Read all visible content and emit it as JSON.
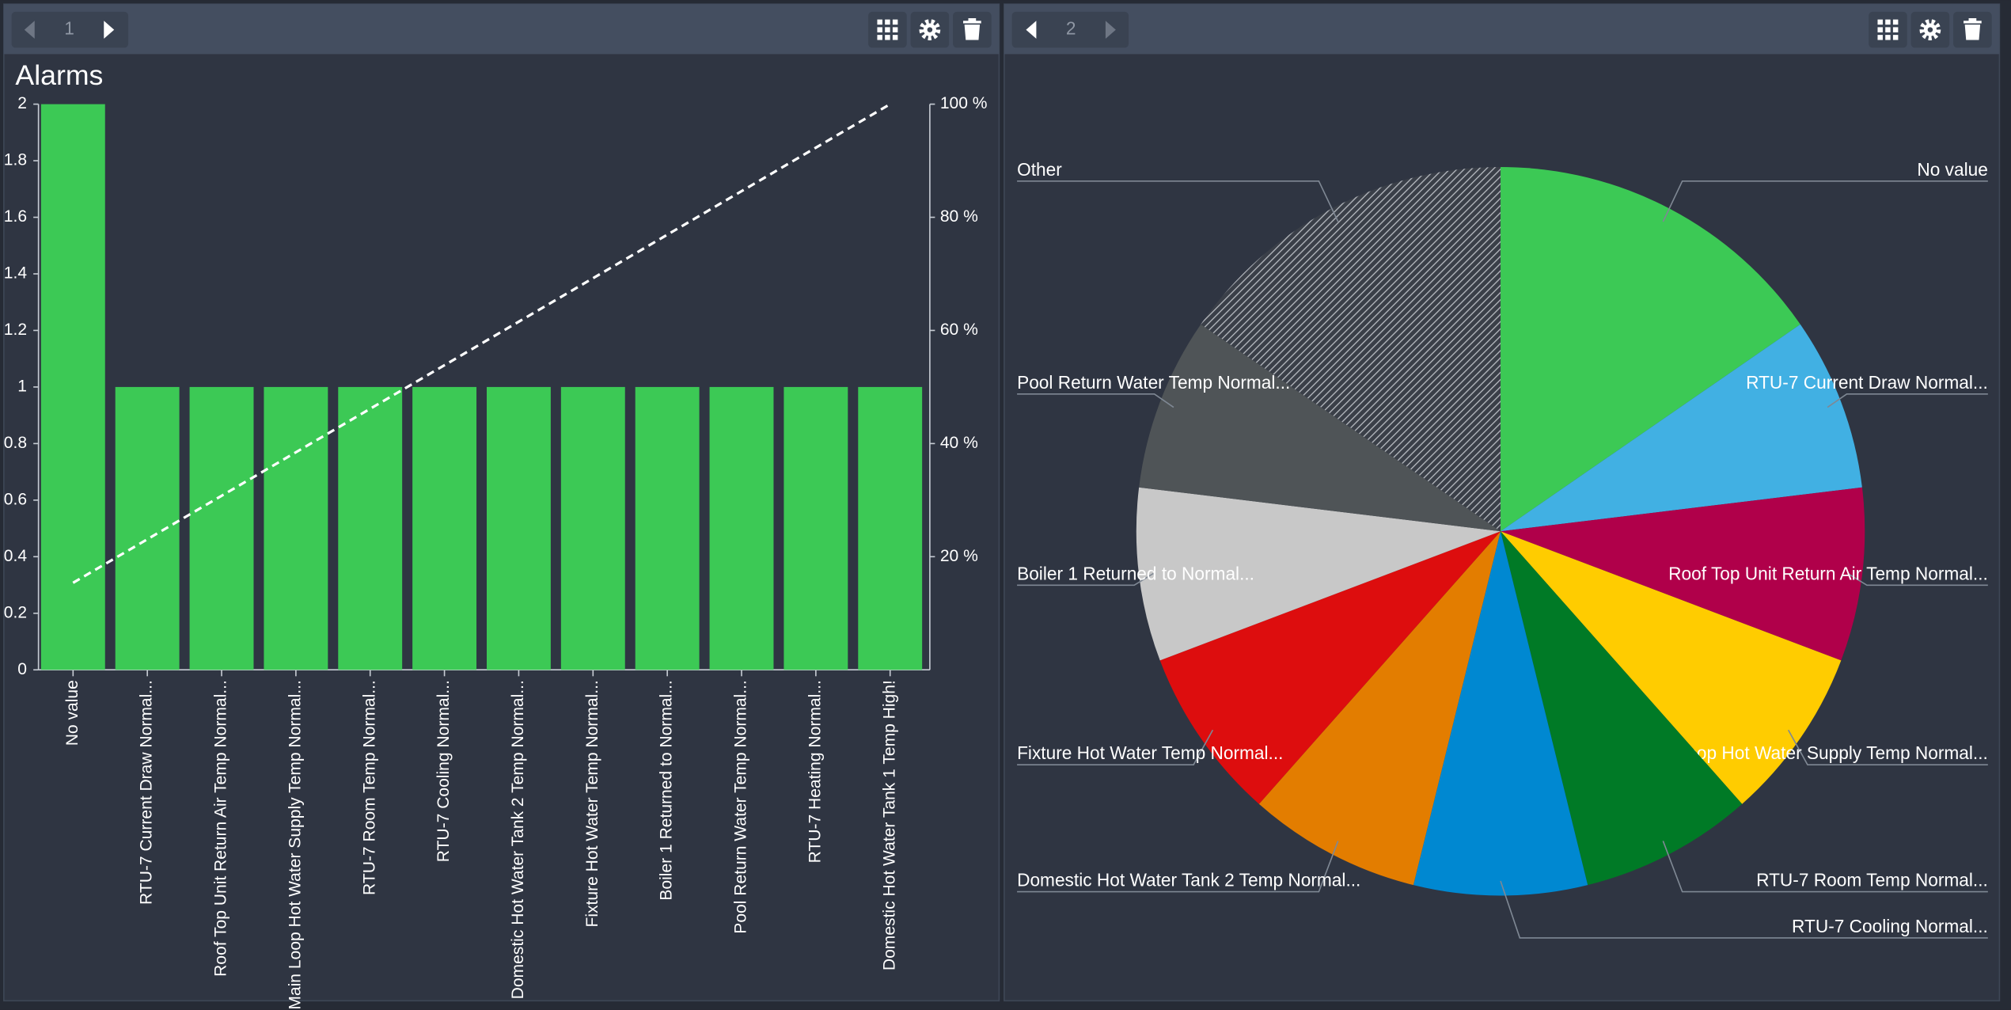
{
  "panels": [
    {
      "page": "1"
    },
    {
      "page": "2"
    }
  ],
  "chart_data": [
    {
      "type": "bar",
      "title": "Alarms",
      "categories": [
        "No value",
        "RTU-7 Current Draw Normal...",
        "Roof Top Unit Return Air Temp Normal...",
        "Main Loop Hot Water Supply Temp Normal...",
        "RTU-7 Room Temp Normal...",
        "RTU-7 Cooling Normal...",
        "Domestic Hot Water Tank 2 Temp Normal...",
        "Fixture Hot Water Temp Normal...",
        "Boiler 1 Returned to Normal...",
        "Pool Return Water Temp Normal...",
        "RTU-7 Heating Normal...",
        "Domestic Hot Water Tank 1 Temp High!"
      ],
      "values": [
        2,
        1,
        1,
        1,
        1,
        1,
        1,
        1,
        1,
        1,
        1,
        1
      ],
      "color": "#3cc955",
      "ylim": [
        0,
        2
      ],
      "yticks": [
        0,
        0.2,
        0.4,
        0.6,
        0.8,
        1,
        1.2,
        1.4,
        1.6,
        1.8,
        2
      ],
      "y2lim": [
        0,
        100
      ],
      "y2ticks": [
        {
          "value": 20,
          "label": "20 %"
        },
        {
          "value": 40,
          "label": "40 %"
        },
        {
          "value": 60,
          "label": "60 %"
        },
        {
          "value": 80,
          "label": "80 %"
        },
        {
          "value": 100,
          "label": "100 %"
        }
      ],
      "pareto": {
        "values": [
          15.38,
          23.08,
          30.77,
          38.46,
          46.15,
          53.85,
          61.54,
          69.23,
          76.92,
          84.62,
          92.31,
          100
        ],
        "axis": "y2",
        "color": "#ffffff",
        "dashed": true
      },
      "grid": false
    },
    {
      "type": "pie",
      "categories": [
        "No value",
        "RTU-7 Current Draw Normal...",
        "Roof Top Unit Return Air Temp Normal...",
        "Main Loop Hot Water Supply Temp Normal...",
        "RTU-7 Room Temp Normal...",
        "RTU-7 Cooling Normal...",
        "Domestic Hot Water Tank 2 Temp Normal...",
        "Fixture Hot Water Temp Normal...",
        "Boiler 1 Returned to Normal...",
        "Pool Return Water Temp Normal...",
        "Other"
      ],
      "values": [
        2,
        1,
        1,
        1,
        1,
        1,
        1,
        1,
        1,
        1,
        2
      ],
      "colors": [
        "#3cc955",
        "#41b0e3",
        "#b0004a",
        "#ffcc00",
        "#007a26",
        "#0088d1",
        "#e37d00",
        "#dd0d0e",
        "#c8c8c8",
        "#4f5457",
        "#9aa0a6"
      ],
      "other_hatched": true
    }
  ]
}
